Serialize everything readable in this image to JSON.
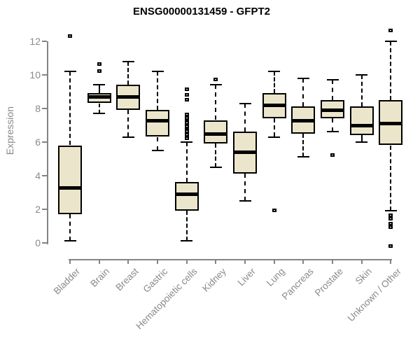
{
  "title": "ENSG00000131459 - GFPT2",
  "chart_data": {
    "type": "boxplot",
    "title": "ENSG00000131459 - GFPT2",
    "xlabel": "",
    "ylabel": "Expression",
    "ylim": [
      0,
      12
    ],
    "y_ticks": [
      0,
      2,
      4,
      6,
      8,
      10,
      12
    ],
    "grid": false,
    "legend": "none",
    "x_label_rotation_deg": 45,
    "categories": [
      "Bladder",
      "Brain",
      "Breast",
      "Gastric",
      "Hematopoietic cells",
      "Kidney",
      "Liver",
      "Lung",
      "Pancreas",
      "Prostate",
      "Skin",
      "Unknown / Other"
    ],
    "series": [
      {
        "name": "Bladder",
        "whisker_low": 0.1,
        "q1": 1.7,
        "median": 3.3,
        "q3": 5.8,
        "whisker_high": 10.2,
        "outliers": [
          12.3
        ]
      },
      {
        "name": "Brain",
        "whisker_low": 7.7,
        "q1": 8.3,
        "median": 8.7,
        "q3": 8.9,
        "whisker_high": 9.4,
        "outliers": [
          10.6,
          10.2
        ]
      },
      {
        "name": "Breast",
        "whisker_low": 6.3,
        "q1": 7.9,
        "median": 8.7,
        "q3": 9.4,
        "whisker_high": 10.8,
        "outliers": []
      },
      {
        "name": "Gastric",
        "whisker_low": 5.5,
        "q1": 6.3,
        "median": 7.3,
        "q3": 7.9,
        "whisker_high": 10.2,
        "outliers": []
      },
      {
        "name": "Hematopoietic cells",
        "whisker_low": 0.1,
        "q1": 1.9,
        "median": 2.9,
        "q3": 3.6,
        "whisker_high": 6.0,
        "outliers": [
          9.1,
          8.8,
          8.5,
          7.6,
          7.4,
          7.2,
          7.1,
          7.0,
          6.9,
          6.8,
          6.7,
          6.6,
          6.5,
          6.4,
          6.3,
          6.2
        ]
      },
      {
        "name": "Kidney",
        "whisker_low": 4.5,
        "q1": 5.9,
        "median": 6.5,
        "q3": 7.3,
        "whisker_high": 9.4,
        "outliers": [
          9.7
        ]
      },
      {
        "name": "Liver",
        "whisker_low": 2.5,
        "q1": 4.1,
        "median": 5.4,
        "q3": 6.6,
        "whisker_high": 8.3,
        "outliers": []
      },
      {
        "name": "Lung",
        "whisker_low": 6.3,
        "q1": 7.4,
        "median": 8.2,
        "q3": 8.9,
        "whisker_high": 10.2,
        "outliers": [
          1.9
        ]
      },
      {
        "name": "Pancreas",
        "whisker_low": 5.1,
        "q1": 6.5,
        "median": 7.3,
        "q3": 8.1,
        "whisker_high": 9.8,
        "outliers": []
      },
      {
        "name": "Prostate",
        "whisker_low": 6.6,
        "q1": 7.4,
        "median": 7.9,
        "q3": 8.5,
        "whisker_high": 9.7,
        "outliers": [
          5.2
        ]
      },
      {
        "name": "Skin",
        "whisker_low": 6.0,
        "q1": 6.4,
        "median": 7.0,
        "q3": 8.1,
        "whisker_high": 10.0,
        "outliers": []
      },
      {
        "name": "Unknown / Other",
        "whisker_low": 1.9,
        "q1": 5.8,
        "median": 7.1,
        "q3": 8.5,
        "whisker_high": 12.0,
        "outliers": [
          12.6,
          1.6,
          1.4,
          1.1,
          0.9,
          -0.2
        ]
      }
    ],
    "colors": {
      "box_fill": "#EBE6CB",
      "box_border": "#000000",
      "median": "#000000",
      "whisker": "#000000",
      "axis": "#848484",
      "axis_text": "#8A8A8A",
      "title_text": "#000000",
      "background": "#FFFFFF"
    }
  }
}
